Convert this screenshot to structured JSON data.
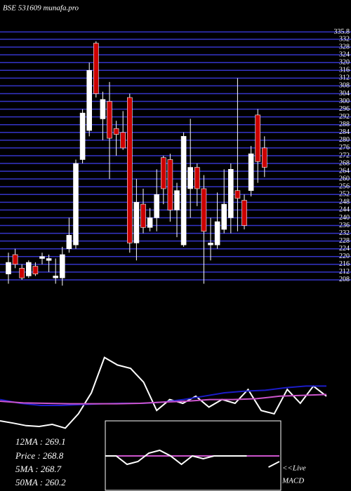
{
  "chart_data": [
    {
      "type": "candlestick",
      "title": "BSE 531609 munafa.pro",
      "open": [
        211,
        221,
        214,
        210,
        215,
        219,
        218,
        209,
        209,
        224,
        226,
        270,
        285,
        330,
        291,
        300,
        286,
        284,
        302,
        227,
        247,
        235,
        240,
        271,
        270,
        244,
        226,
        255,
        266,
        255,
        226,
        226,
        234,
        240,
        254,
        249,
        254,
        293,
        276
      ],
      "high": [
        222,
        224,
        216,
        218,
        217,
        222,
        221,
        219,
        225,
        240,
        270,
        296,
        320,
        331,
        305,
        310,
        290,
        295,
        304,
        260,
        255,
        245,
        265,
        272,
        273,
        258,
        284,
        291,
        268,
        262,
        240,
        253,
        265,
        268,
        312,
        252,
        277,
        296,
        282
      ],
      "low": [
        206,
        214,
        208,
        209,
        210,
        216,
        212,
        206,
        205,
        222,
        224,
        268,
        282,
        302,
        280,
        260,
        272,
        275,
        222,
        218,
        232,
        233,
        233,
        247,
        238,
        230,
        225,
        240,
        246,
        206,
        218,
        224,
        232,
        232,
        233,
        234,
        251,
        258,
        261
      ],
      "close": [
        217,
        216,
        209,
        217,
        211,
        220,
        219,
        210,
        221,
        231,
        268,
        294,
        316,
        304,
        301,
        281,
        283,
        276,
        227,
        248,
        235,
        240,
        252,
        255,
        244,
        254,
        282,
        266,
        255,
        233,
        227,
        238,
        247,
        265,
        250,
        236,
        273,
        269,
        266
      ],
      "up_color": "#ffffff",
      "down_color": "#cc0000",
      "grid_color": "#3535c8",
      "ylim": [
        204,
        336
      ],
      "yticks": [
        335.8,
        332,
        328,
        324,
        320,
        316,
        312,
        308,
        304,
        300,
        296,
        292,
        288,
        284,
        280,
        276,
        272,
        268,
        264,
        260,
        256,
        252,
        248,
        244,
        240,
        236,
        232,
        228,
        224,
        220,
        216,
        212,
        208
      ],
      "grid": true
    },
    {
      "type": "line",
      "ylim": [
        0,
        100
      ],
      "series": [
        {
          "color": "#ffffff",
          "values": [
            16.7,
            14,
            11,
            10,
            12.5,
            8,
            25,
            50,
            92,
            83,
            79,
            62.5,
            29,
            42,
            37.5,
            46,
            33,
            42,
            37.5,
            54,
            29,
            25,
            54,
            37.5,
            58,
            46
          ]
        },
        {
          "color": "#1c1cc8",
          "values": [
            42,
            37.5,
            35,
            35,
            36,
            37,
            37.5,
            37.5,
            39,
            42,
            46,
            50,
            52,
            53,
            56,
            58,
            58
          ]
        },
        {
          "color": "#cc55cc",
          "values": [
            40,
            38,
            37.5,
            37,
            37,
            37,
            37.5,
            39,
            40,
            42,
            42,
            43,
            46,
            47,
            48
          ]
        }
      ]
    },
    {
      "type": "line",
      "ylim": [
        -1,
        1
      ],
      "series": [
        {
          "color": "#cc55cc",
          "values": [
            0,
            0
          ]
        },
        {
          "color": "#ffffff",
          "values": [
            0,
            0,
            -0.3,
            -0.2,
            0.1,
            0.2,
            0,
            -0.3,
            0,
            -0.1,
            0,
            0,
            0,
            0,
            null,
            -0.4,
            -0.2
          ]
        }
      ]
    }
  ],
  "stats": [
    "12MA : 269.1",
    "Price  : 268.8",
    "5MA : 268.7",
    "50MA : 260.2"
  ],
  "macd_label": [
    "<<Live",
    "MACD"
  ]
}
